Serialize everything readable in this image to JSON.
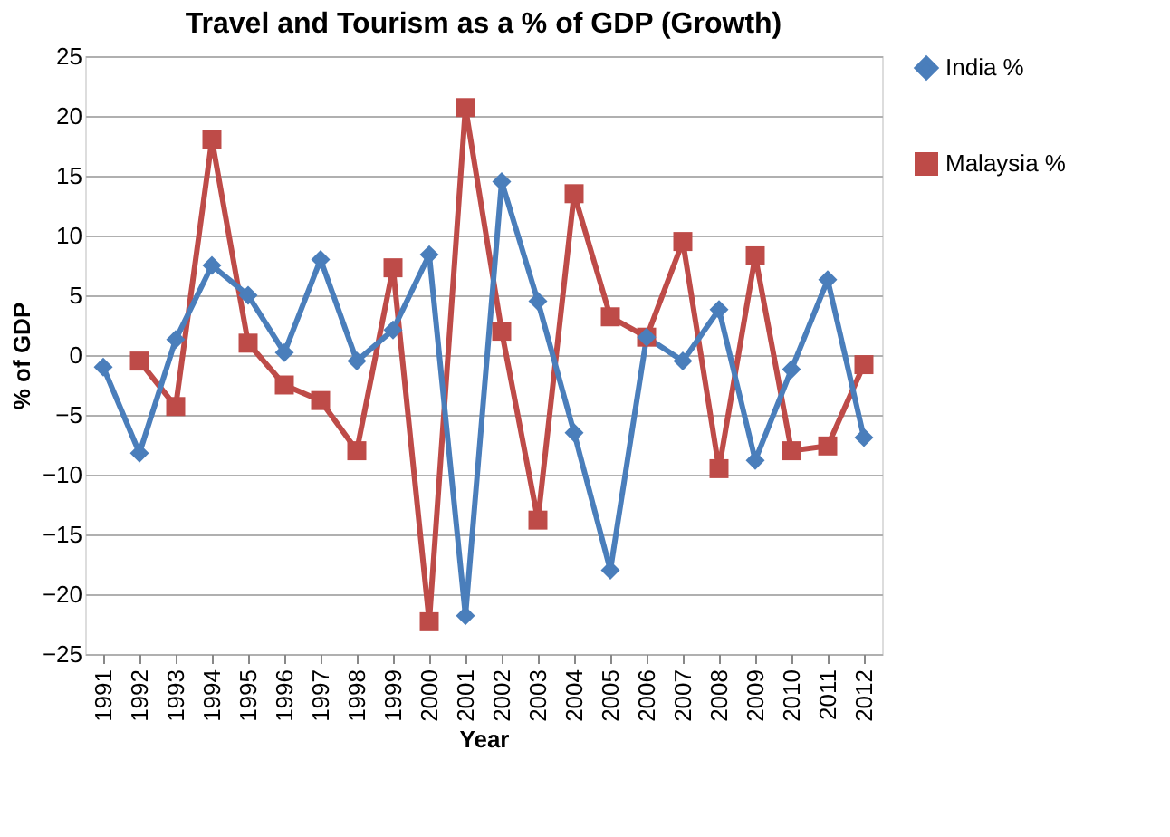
{
  "chart_data": {
    "type": "line",
    "title": "Travel and Tourism as a % of GDP (Growth)",
    "xlabel": "Year",
    "ylabel": "% of GDP",
    "categories": [
      "1991",
      "1992",
      "1993",
      "1994",
      "1995",
      "1996",
      "1997",
      "1998",
      "1999",
      "2000",
      "2001",
      "2002",
      "2003",
      "2004",
      "2005",
      "2006",
      "2007",
      "2008",
      "2009",
      "2010",
      "2011",
      "2012"
    ],
    "series": [
      {
        "name": "India %",
        "color": "#4a7ebb",
        "marker": "diamond",
        "values": [
          -1,
          -8.2,
          1.3,
          7.5,
          5,
          0.2,
          8,
          -0.5,
          2.1,
          8.4,
          -21.8,
          14.5,
          4.5,
          -6.5,
          -18,
          1.5,
          -0.5,
          3.8,
          -8.8,
          -1.2,
          6.3,
          -6.9
        ]
      },
      {
        "name": "Malaysia %",
        "color": "#be4b48",
        "marker": "square",
        "values": [
          null,
          -0.5,
          -4.3,
          18,
          1,
          -2.5,
          -3.8,
          -8,
          7.3,
          -22.3,
          20.7,
          2,
          -13.8,
          13.5,
          3.2,
          1.5,
          9.5,
          -9.5,
          8.3,
          -8,
          -7.6,
          -0.8
        ]
      }
    ],
    "ylim": [
      -25,
      25
    ],
    "yticks": [
      -25,
      -20,
      -15,
      -10,
      -5,
      0,
      5,
      10,
      15,
      20,
      25
    ],
    "grid": "y",
    "legend": "right"
  }
}
